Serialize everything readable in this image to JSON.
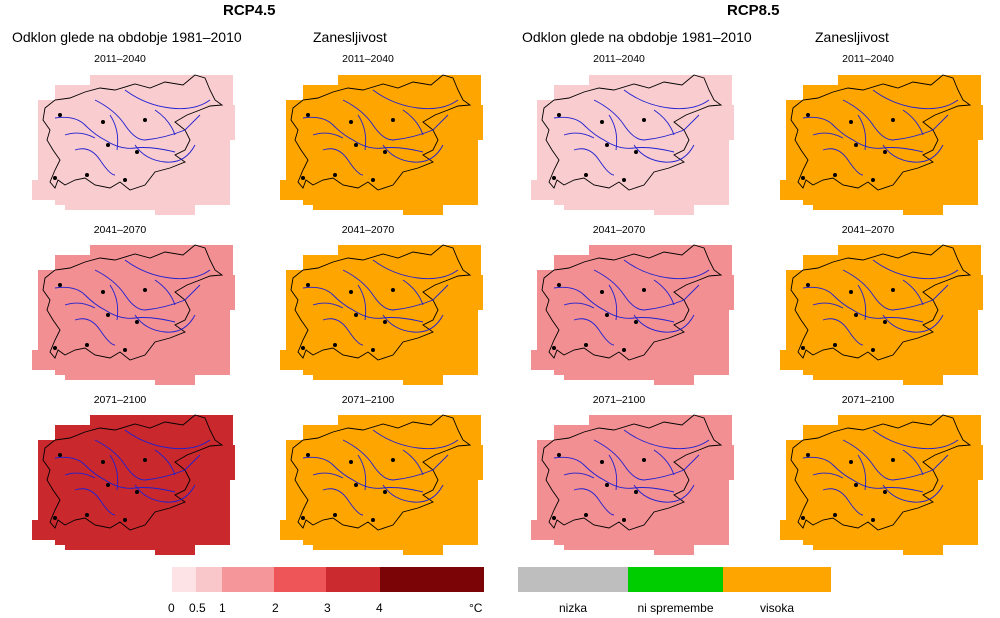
{
  "scenarios": [
    {
      "title": "RCP4.5",
      "columns": [
        "Odklon glede na obdobje 1981–2010",
        "Zanesljivost"
      ],
      "periods": [
        "2011–2040",
        "2041–2070",
        "2071–2100"
      ],
      "anomaly_class_colors": [
        "#f9cccf",
        "#f28f92",
        "#c9282d"
      ],
      "reliability_color": "#ffa500"
    },
    {
      "title": "RCP8.5",
      "columns": [
        "Odklon glede na obdobje 1981–2010",
        "Zanesljivost"
      ],
      "periods": [
        "2011–2040",
        "2041–2070",
        "2071–2100"
      ],
      "anomaly_class_colors": [
        "#f9cccf",
        "#f28f92",
        "#f28f92"
      ],
      "reliability_color": "#ffa500"
    }
  ],
  "temperature_legend": {
    "colors": [
      "#fde3e5",
      "#f9c6ca",
      "#f4969a",
      "#ee5558",
      "#cb2a2e",
      "#7a0406"
    ],
    "tick_labels": [
      "0",
      "0.5",
      "1",
      "2",
      "3",
      "4"
    ],
    "unit": "°C"
  },
  "reliability_legend": {
    "colors": [
      "#bebebe",
      "#00cd00",
      "#ffa500"
    ],
    "labels": [
      "nizka",
      "ni spremembe",
      "visoka"
    ]
  },
  "map_styling": {
    "river_color": "#2020d0",
    "border_color": "#000000"
  }
}
